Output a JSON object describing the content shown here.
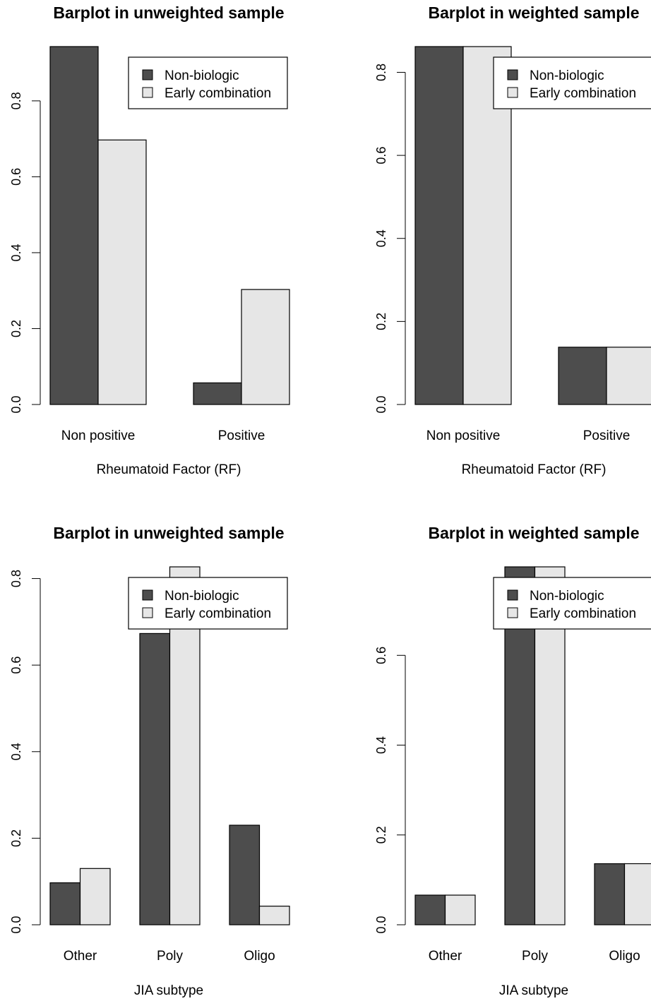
{
  "colors": {
    "series_dark": "#4d4d4d",
    "series_light": "#e6e6e6",
    "stroke": "#000000"
  },
  "chart_data": [
    {
      "type": "bar",
      "title": "Barplot in unweighted sample",
      "xlabel": "Rheumatoid Factor (RF)",
      "ylabel": "",
      "categories": [
        "Non positive",
        "Positive"
      ],
      "series": [
        {
          "name": "Non-biologic",
          "values": [
            0.943,
            0.057
          ]
        },
        {
          "name": "Early combination",
          "values": [
            0.697,
            0.303
          ]
        }
      ],
      "ylim": [
        0,
        0.943
      ],
      "yticks": [
        0.0,
        0.2,
        0.4,
        0.6,
        0.8
      ],
      "ytick_labels": [
        "0.0",
        "0.2",
        "0.4",
        "0.6",
        "0.8"
      ],
      "legend": {
        "position": "top-right",
        "entries": [
          "Non-biologic",
          "Early combination"
        ]
      }
    },
    {
      "type": "bar",
      "title": "Barplot in weighted sample",
      "xlabel": "Rheumatoid Factor (RF)",
      "ylabel": "",
      "categories": [
        "Non positive",
        "Positive"
      ],
      "series": [
        {
          "name": "Non-biologic",
          "values": [
            0.862,
            0.138
          ]
        },
        {
          "name": "Early combination",
          "values": [
            0.862,
            0.138
          ]
        }
      ],
      "ylim": [
        0,
        0.862
      ],
      "yticks": [
        0.0,
        0.2,
        0.4,
        0.6,
        0.8
      ],
      "ytick_labels": [
        "0.0",
        "0.2",
        "0.4",
        "0.6",
        "0.8"
      ],
      "legend": {
        "position": "top-right",
        "entries": [
          "Non-biologic",
          "Early combination"
        ]
      }
    },
    {
      "type": "bar",
      "title": "Barplot in unweighted sample",
      "xlabel": "JIA subtype",
      "ylabel": "",
      "categories": [
        "Other",
        "Poly",
        "Oligo"
      ],
      "series": [
        {
          "name": "Non-biologic",
          "values": [
            0.097,
            0.673,
            0.23
          ]
        },
        {
          "name": "Early combination",
          "values": [
            0.13,
            0.827,
            0.043
          ]
        }
      ],
      "ylim": [
        0,
        0.827
      ],
      "yticks": [
        0.0,
        0.2,
        0.4,
        0.6,
        0.8
      ],
      "ytick_labels": [
        "0.0",
        "0.2",
        "0.4",
        "0.6",
        "0.8"
      ],
      "legend": {
        "position": "top-right",
        "entries": [
          "Non-biologic",
          "Early combination"
        ]
      }
    },
    {
      "type": "bar",
      "title": "Barplot in weighted sample",
      "xlabel": "JIA subtype",
      "ylabel": "",
      "categories": [
        "Other",
        "Poly",
        "Oligo"
      ],
      "series": [
        {
          "name": "Non-biologic",
          "values": [
            0.066,
            0.797,
            0.136
          ]
        },
        {
          "name": "Early combination",
          "values": [
            0.066,
            0.797,
            0.136
          ]
        }
      ],
      "ylim": [
        0,
        0.797
      ],
      "yticks": [
        0.0,
        0.2,
        0.4,
        0.6
      ],
      "ytick_labels": [
        "0.0",
        "0.2",
        "0.4",
        "0.6"
      ],
      "legend": {
        "position": "top-right",
        "entries": [
          "Non-biologic",
          "Early combination"
        ]
      }
    }
  ]
}
